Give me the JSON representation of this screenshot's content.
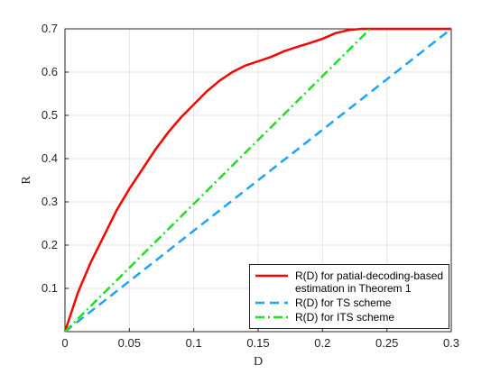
{
  "chart_data": {
    "type": "line",
    "x_label": "D",
    "y_label": "R",
    "xlim": [
      0,
      0.3
    ],
    "xticks": [
      0,
      0.05,
      0.1,
      0.15,
      0.2,
      0.25,
      0.3
    ],
    "ylim": [
      0,
      0.7
    ],
    "yticks": [
      0.1,
      0.2,
      0.3,
      0.4,
      0.5,
      0.6,
      0.7
    ],
    "grid": true,
    "legend": "lower right",
    "series": [
      {
        "name": "R(D) for patial-decoding-based estimation in Theorem 1",
        "color": "#ff0000",
        "style": "solid",
        "x": [
          0,
          0.01,
          0.02,
          0.03,
          0.04,
          0.05,
          0.06,
          0.07,
          0.08,
          0.09,
          0.1,
          0.11,
          0.12,
          0.13,
          0.14,
          0.15,
          0.16,
          0.17,
          0.18,
          0.19,
          0.2,
          0.21,
          0.22,
          0.23,
          0.25,
          0.3
        ],
        "values": [
          0,
          0.09,
          0.16,
          0.22,
          0.28,
          0.33,
          0.375,
          0.42,
          0.46,
          0.495,
          0.525,
          0.555,
          0.58,
          0.6,
          0.615,
          0.625,
          0.635,
          0.648,
          0.658,
          0.667,
          0.677,
          0.69,
          0.697,
          0.7,
          0.7,
          0.7
        ]
      },
      {
        "name": "R(D) for TS scheme",
        "color": "#1aa3ff",
        "style": "dashed",
        "x": [
          0,
          0.3
        ],
        "values": [
          0,
          0.7
        ]
      },
      {
        "name": "R(D) for ITS scheme",
        "color": "#1fe01f",
        "style": "dashdot",
        "x": [
          0,
          0.237
        ],
        "values": [
          0,
          0.7
        ]
      }
    ]
  }
}
